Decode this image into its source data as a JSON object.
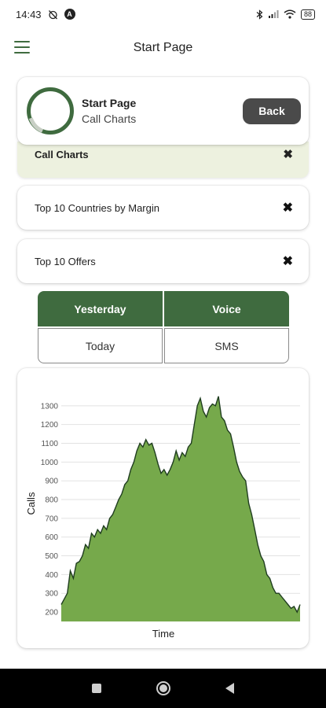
{
  "status_bar": {
    "time": "14:43",
    "alarm_icon": "alarm-off-icon",
    "notification_badge": "A",
    "battery": "88"
  },
  "app_bar": {
    "title": "Start Page",
    "menu_icon": "hamburger-menu-icon"
  },
  "header_card": {
    "title": "Start Page",
    "subtitle": "Call Charts",
    "back_label": "Back",
    "accent": "#3f6b3f"
  },
  "strip_card": {
    "label": "Call Charts",
    "close": "✖"
  },
  "report_items": [
    {
      "label": "Top 10 Countries by Margin",
      "close": "✖"
    },
    {
      "label": "Top 10 Offers",
      "close": "✖"
    }
  ],
  "segments": {
    "period": {
      "yesterday": "Yesterday",
      "today": "Today",
      "selected": "Yesterday"
    },
    "type": {
      "voice": "Voice",
      "sms": "SMS",
      "selected": "Voice"
    }
  },
  "chart_data": {
    "type": "area",
    "title": "",
    "xlabel": "Time",
    "ylabel": "Calls",
    "y_ticks": [
      200,
      300,
      400,
      500,
      600,
      700,
      800,
      900,
      1000,
      1100,
      1200,
      1300
    ],
    "ylim": [
      150,
      1400
    ],
    "grid": true,
    "fill_color": "#76a94b",
    "line_color": "#1f3d1f",
    "x": [
      0,
      1,
      2,
      3,
      4,
      5,
      6,
      7,
      8,
      9,
      10,
      11,
      12,
      13,
      14,
      15,
      16,
      17,
      18,
      19,
      20,
      21,
      22,
      23,
      24,
      25,
      26,
      27,
      28,
      29,
      30,
      31,
      32,
      33,
      34,
      35,
      36,
      37,
      38,
      39,
      40,
      41,
      42,
      43,
      44,
      45,
      46,
      47,
      48,
      49,
      50,
      51,
      52,
      53,
      54,
      55,
      56,
      57,
      58,
      59,
      60,
      61,
      62,
      63,
      64,
      65,
      66,
      67,
      68,
      69,
      70,
      71,
      72,
      73,
      74,
      75,
      76,
      77,
      78,
      79
    ],
    "values": [
      240,
      270,
      300,
      420,
      380,
      460,
      470,
      500,
      560,
      540,
      620,
      600,
      640,
      620,
      660,
      640,
      700,
      720,
      760,
      800,
      830,
      880,
      900,
      960,
      1000,
      1060,
      1100,
      1080,
      1120,
      1090,
      1100,
      1050,
      990,
      940,
      960,
      930,
      960,
      1000,
      1060,
      1010,
      1050,
      1030,
      1080,
      1100,
      1200,
      1300,
      1340,
      1270,
      1240,
      1290,
      1310,
      1300,
      1350,
      1240,
      1220,
      1170,
      1150,
      1080,
      1000,
      950,
      920,
      900,
      780,
      720,
      640,
      560,
      500,
      470,
      400,
      380,
      330,
      300,
      300,
      280,
      260,
      240,
      220,
      230,
      200,
      240
    ]
  },
  "nav_bar": {
    "recents_icon": "recents-square-icon",
    "home_icon": "home-circle-icon",
    "back_icon": "back-triangle-icon"
  }
}
